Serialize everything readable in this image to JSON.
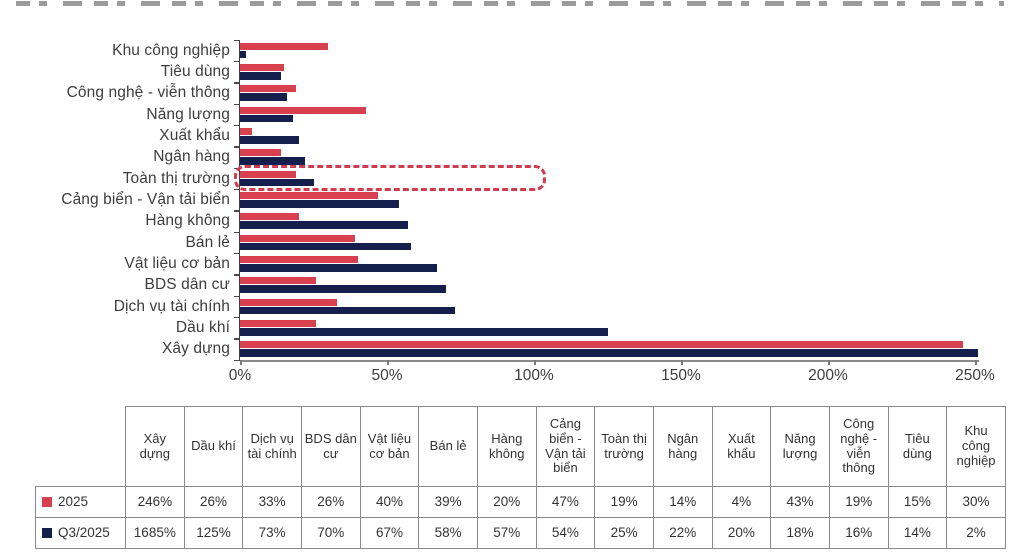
{
  "colors": {
    "series_2025": "#d8404f",
    "series_q3_2025": "#151f4d",
    "highlight_border": "#d23a4e",
    "axis": "#8a8a8a",
    "text": "#3d3d3d",
    "table_border": "#8a8a8a"
  },
  "chart_data": {
    "type": "bar",
    "orientation": "horizontal",
    "title": "",
    "xlabel": "",
    "ylabel": "",
    "xlim": [
      0,
      250
    ],
    "x_tick_labels": [
      "0%",
      "50%",
      "100%",
      "150%",
      "200%",
      "250%"
    ],
    "x_tick_values": [
      0,
      50,
      100,
      150,
      200,
      250
    ],
    "grid": false,
    "legend_position": "table-left-column",
    "values_clipped_at_xlim": true,
    "categories_top_to_bottom": [
      "Khu công nghiệp",
      "Tiêu dùng",
      "Công nghệ - viễn thông",
      "Năng lượng",
      "Xuất khẩu",
      "Ngân hàng",
      "Toàn thị trường",
      "Cảng biển - Vận tải biển",
      "Hàng không",
      "Bán lẻ",
      "Vật liệu cơ bản",
      "BDS dân cư",
      "Dịch vụ tài chính",
      "Dầu khí",
      "Xây dựng"
    ],
    "series": [
      {
        "name": "2025",
        "color": "#d8404f",
        "values": [
          30,
          15,
          19,
          43,
          4,
          14,
          19,
          47,
          20,
          39,
          40,
          26,
          33,
          26,
          246
        ]
      },
      {
        "name": "Q3/2025",
        "color": "#151f4d",
        "values": [
          2,
          14,
          16,
          18,
          20,
          22,
          25,
          54,
          57,
          58,
          67,
          70,
          73,
          125,
          1685
        ]
      }
    ],
    "highlight": {
      "category": "Toàn thị trường",
      "style": "red-dashed-rounded-box"
    }
  },
  "table": {
    "columns": [
      "Xây dựng",
      "Dầu khí",
      "Dịch vụ tài chính",
      "BDS dân cư",
      "Vật liệu cơ bản",
      "Bán lẻ",
      "Hàng không",
      "Cảng biển - Vận tải biển",
      "Toàn thị trường",
      "Ngân hàng",
      "Xuất khẩu",
      "Năng lượng",
      "Công nghệ - viễn thông",
      "Tiêu dùng",
      "Khu công nghiệp"
    ],
    "rows": [
      {
        "label": "2025",
        "key_color": "#d8404f",
        "values": [
          "246%",
          "26%",
          "33%",
          "26%",
          "40%",
          "39%",
          "20%",
          "47%",
          "19%",
          "14%",
          "4%",
          "43%",
          "19%",
          "15%",
          "30%"
        ]
      },
      {
        "label": "Q3/2025",
        "key_color": "#151f4d",
        "values": [
          "1685%",
          "125%",
          "73%",
          "70%",
          "67%",
          "58%",
          "57%",
          "54%",
          "25%",
          "22%",
          "20%",
          "18%",
          "16%",
          "14%",
          "2%"
        ]
      }
    ]
  }
}
